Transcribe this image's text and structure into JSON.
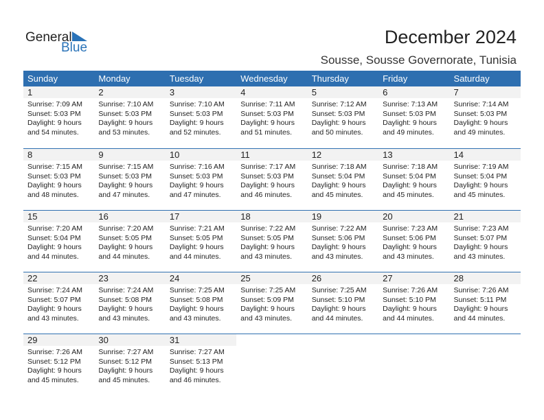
{
  "logo": {
    "text1": "General",
    "text2": "Blue"
  },
  "title": "December 2024",
  "location": "Sousse, Sousse Governorate, Tunisia",
  "weekdays": [
    "Sunday",
    "Monday",
    "Tuesday",
    "Wednesday",
    "Thursday",
    "Friday",
    "Saturday"
  ],
  "colors": {
    "header": "#2e6fb0",
    "date_band": "#f2f2f2",
    "logo_blue": "#2a73b8"
  },
  "days": [
    {
      "d": "1",
      "rise": "Sunrise: 7:09 AM",
      "set": "Sunset: 5:03 PM",
      "dl1": "Daylight: 9 hours",
      "dl2": "and 54 minutes."
    },
    {
      "d": "2",
      "rise": "Sunrise: 7:10 AM",
      "set": "Sunset: 5:03 PM",
      "dl1": "Daylight: 9 hours",
      "dl2": "and 53 minutes."
    },
    {
      "d": "3",
      "rise": "Sunrise: 7:10 AM",
      "set": "Sunset: 5:03 PM",
      "dl1": "Daylight: 9 hours",
      "dl2": "and 52 minutes."
    },
    {
      "d": "4",
      "rise": "Sunrise: 7:11 AM",
      "set": "Sunset: 5:03 PM",
      "dl1": "Daylight: 9 hours",
      "dl2": "and 51 minutes."
    },
    {
      "d": "5",
      "rise": "Sunrise: 7:12 AM",
      "set": "Sunset: 5:03 PM",
      "dl1": "Daylight: 9 hours",
      "dl2": "and 50 minutes."
    },
    {
      "d": "6",
      "rise": "Sunrise: 7:13 AM",
      "set": "Sunset: 5:03 PM",
      "dl1": "Daylight: 9 hours",
      "dl2": "and 49 minutes."
    },
    {
      "d": "7",
      "rise": "Sunrise: 7:14 AM",
      "set": "Sunset: 5:03 PM",
      "dl1": "Daylight: 9 hours",
      "dl2": "and 49 minutes."
    },
    {
      "d": "8",
      "rise": "Sunrise: 7:15 AM",
      "set": "Sunset: 5:03 PM",
      "dl1": "Daylight: 9 hours",
      "dl2": "and 48 minutes."
    },
    {
      "d": "9",
      "rise": "Sunrise: 7:15 AM",
      "set": "Sunset: 5:03 PM",
      "dl1": "Daylight: 9 hours",
      "dl2": "and 47 minutes."
    },
    {
      "d": "10",
      "rise": "Sunrise: 7:16 AM",
      "set": "Sunset: 5:03 PM",
      "dl1": "Daylight: 9 hours",
      "dl2": "and 47 minutes."
    },
    {
      "d": "11",
      "rise": "Sunrise: 7:17 AM",
      "set": "Sunset: 5:03 PM",
      "dl1": "Daylight: 9 hours",
      "dl2": "and 46 minutes."
    },
    {
      "d": "12",
      "rise": "Sunrise: 7:18 AM",
      "set": "Sunset: 5:04 PM",
      "dl1": "Daylight: 9 hours",
      "dl2": "and 45 minutes."
    },
    {
      "d": "13",
      "rise": "Sunrise: 7:18 AM",
      "set": "Sunset: 5:04 PM",
      "dl1": "Daylight: 9 hours",
      "dl2": "and 45 minutes."
    },
    {
      "d": "14",
      "rise": "Sunrise: 7:19 AM",
      "set": "Sunset: 5:04 PM",
      "dl1": "Daylight: 9 hours",
      "dl2": "and 45 minutes."
    },
    {
      "d": "15",
      "rise": "Sunrise: 7:20 AM",
      "set": "Sunset: 5:04 PM",
      "dl1": "Daylight: 9 hours",
      "dl2": "and 44 minutes."
    },
    {
      "d": "16",
      "rise": "Sunrise: 7:20 AM",
      "set": "Sunset: 5:05 PM",
      "dl1": "Daylight: 9 hours",
      "dl2": "and 44 minutes."
    },
    {
      "d": "17",
      "rise": "Sunrise: 7:21 AM",
      "set": "Sunset: 5:05 PM",
      "dl1": "Daylight: 9 hours",
      "dl2": "and 44 minutes."
    },
    {
      "d": "18",
      "rise": "Sunrise: 7:22 AM",
      "set": "Sunset: 5:05 PM",
      "dl1": "Daylight: 9 hours",
      "dl2": "and 43 minutes."
    },
    {
      "d": "19",
      "rise": "Sunrise: 7:22 AM",
      "set": "Sunset: 5:06 PM",
      "dl1": "Daylight: 9 hours",
      "dl2": "and 43 minutes."
    },
    {
      "d": "20",
      "rise": "Sunrise: 7:23 AM",
      "set": "Sunset: 5:06 PM",
      "dl1": "Daylight: 9 hours",
      "dl2": "and 43 minutes."
    },
    {
      "d": "21",
      "rise": "Sunrise: 7:23 AM",
      "set": "Sunset: 5:07 PM",
      "dl1": "Daylight: 9 hours",
      "dl2": "and 43 minutes."
    },
    {
      "d": "22",
      "rise": "Sunrise: 7:24 AM",
      "set": "Sunset: 5:07 PM",
      "dl1": "Daylight: 9 hours",
      "dl2": "and 43 minutes."
    },
    {
      "d": "23",
      "rise": "Sunrise: 7:24 AM",
      "set": "Sunset: 5:08 PM",
      "dl1": "Daylight: 9 hours",
      "dl2": "and 43 minutes."
    },
    {
      "d": "24",
      "rise": "Sunrise: 7:25 AM",
      "set": "Sunset: 5:08 PM",
      "dl1": "Daylight: 9 hours",
      "dl2": "and 43 minutes."
    },
    {
      "d": "25",
      "rise": "Sunrise: 7:25 AM",
      "set": "Sunset: 5:09 PM",
      "dl1": "Daylight: 9 hours",
      "dl2": "and 43 minutes."
    },
    {
      "d": "26",
      "rise": "Sunrise: 7:25 AM",
      "set": "Sunset: 5:10 PM",
      "dl1": "Daylight: 9 hours",
      "dl2": "and 44 minutes."
    },
    {
      "d": "27",
      "rise": "Sunrise: 7:26 AM",
      "set": "Sunset: 5:10 PM",
      "dl1": "Daylight: 9 hours",
      "dl2": "and 44 minutes."
    },
    {
      "d": "28",
      "rise": "Sunrise: 7:26 AM",
      "set": "Sunset: 5:11 PM",
      "dl1": "Daylight: 9 hours",
      "dl2": "and 44 minutes."
    },
    {
      "d": "29",
      "rise": "Sunrise: 7:26 AM",
      "set": "Sunset: 5:12 PM",
      "dl1": "Daylight: 9 hours",
      "dl2": "and 45 minutes."
    },
    {
      "d": "30",
      "rise": "Sunrise: 7:27 AM",
      "set": "Sunset: 5:12 PM",
      "dl1": "Daylight: 9 hours",
      "dl2": "and 45 minutes."
    },
    {
      "d": "31",
      "rise": "Sunrise: 7:27 AM",
      "set": "Sunset: 5:13 PM",
      "dl1": "Daylight: 9 hours",
      "dl2": "and 46 minutes."
    }
  ]
}
